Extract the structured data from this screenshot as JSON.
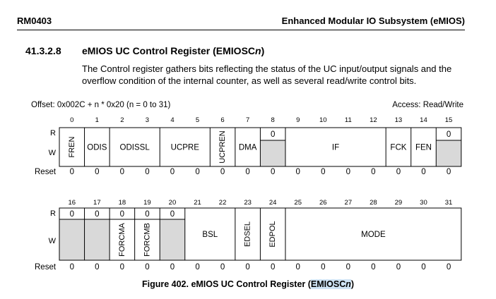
{
  "header": {
    "doc_id": "RM0403",
    "doc_title": "Enhanced Modular IO Subsystem (eMIOS)"
  },
  "section": {
    "number": "41.3.2.8",
    "title_prefix": "eMIOS UC Control Register (EMIOSC",
    "title_italic": "n",
    "title_suffix": ")",
    "description": "The Control register gathers bits reflecting the status of the UC input/output signals and the overflow condition of the internal counter, as well as several read/write control bits."
  },
  "register": {
    "offset": "Offset: 0x002C + n * 0x20 (n = 0 to 31)",
    "access": "Access: Read/Write",
    "row_read_label": "R",
    "row_write_label": "W",
    "reset_label": "Reset",
    "halves": [
      {
        "bit_start": 0,
        "reset": [
          "0",
          "0",
          "0",
          "0",
          "0",
          "0",
          "0",
          "0",
          "0",
          "0",
          "0",
          "0",
          "0",
          "0",
          "0",
          "0"
        ],
        "fields": [
          {
            "name": "FREN",
            "start": 0,
            "width": 1,
            "kind": "rw",
            "vertical": true
          },
          {
            "name": "ODIS",
            "start": 1,
            "width": 1,
            "kind": "rw",
            "vertical": false
          },
          {
            "name": "ODISSL",
            "start": 2,
            "width": 2,
            "kind": "rw",
            "vertical": false
          },
          {
            "name": "UCPRE",
            "start": 4,
            "width": 2,
            "kind": "rw",
            "vertical": false
          },
          {
            "name": "UCPREN",
            "start": 6,
            "width": 1,
            "kind": "rw",
            "vertical": true
          },
          {
            "name": "DMA",
            "start": 7,
            "width": 1,
            "kind": "rw",
            "vertical": false
          },
          {
            "name": "0",
            "start": 8,
            "width": 1,
            "kind": "ro",
            "vertical": false
          },
          {
            "name": "IF",
            "start": 9,
            "width": 4,
            "kind": "rw",
            "vertical": false
          },
          {
            "name": "FCK",
            "start": 13,
            "width": 1,
            "kind": "rw",
            "vertical": false
          },
          {
            "name": "FEN",
            "start": 14,
            "width": 1,
            "kind": "rw",
            "vertical": false
          },
          {
            "name": "0",
            "start": 15,
            "width": 1,
            "kind": "ro",
            "vertical": false
          }
        ]
      },
      {
        "bit_start": 16,
        "reset": [
          "0",
          "0",
          "0",
          "0",
          "0",
          "0",
          "0",
          "0",
          "0",
          "0",
          "0",
          "0",
          "0",
          "0",
          "0",
          "0"
        ],
        "fields": [
          {
            "name": "0",
            "start": 0,
            "width": 1,
            "kind": "ro",
            "vertical": false
          },
          {
            "name": "0",
            "start": 1,
            "width": 1,
            "kind": "ro",
            "vertical": false
          },
          {
            "name": "FORCMA",
            "start": 2,
            "width": 1,
            "kind": "wo",
            "read": "0",
            "vertical": true
          },
          {
            "name": "FORCMB",
            "start": 3,
            "width": 1,
            "kind": "wo",
            "read": "0",
            "vertical": true
          },
          {
            "name": "0",
            "start": 4,
            "width": 1,
            "kind": "ro",
            "vertical": false
          },
          {
            "name": "BSL",
            "start": 5,
            "width": 2,
            "kind": "rw",
            "vertical": false
          },
          {
            "name": "EDSEL",
            "start": 7,
            "width": 1,
            "kind": "rw",
            "vertical": true
          },
          {
            "name": "EDPOL",
            "start": 8,
            "width": 1,
            "kind": "rw",
            "vertical": true
          },
          {
            "name": "MODE",
            "start": 9,
            "width": 7,
            "kind": "rw",
            "vertical": false
          }
        ]
      }
    ]
  },
  "figure": {
    "caption_prefix": "Figure 402. eMIOS UC Control Register (",
    "caption_highlight": "EMIOSC",
    "caption_italic": "n",
    "caption_suffix": ")"
  },
  "colors": {
    "reserved_fill": "#d9d9d9",
    "caption_highlight": "#cfe3f5"
  }
}
